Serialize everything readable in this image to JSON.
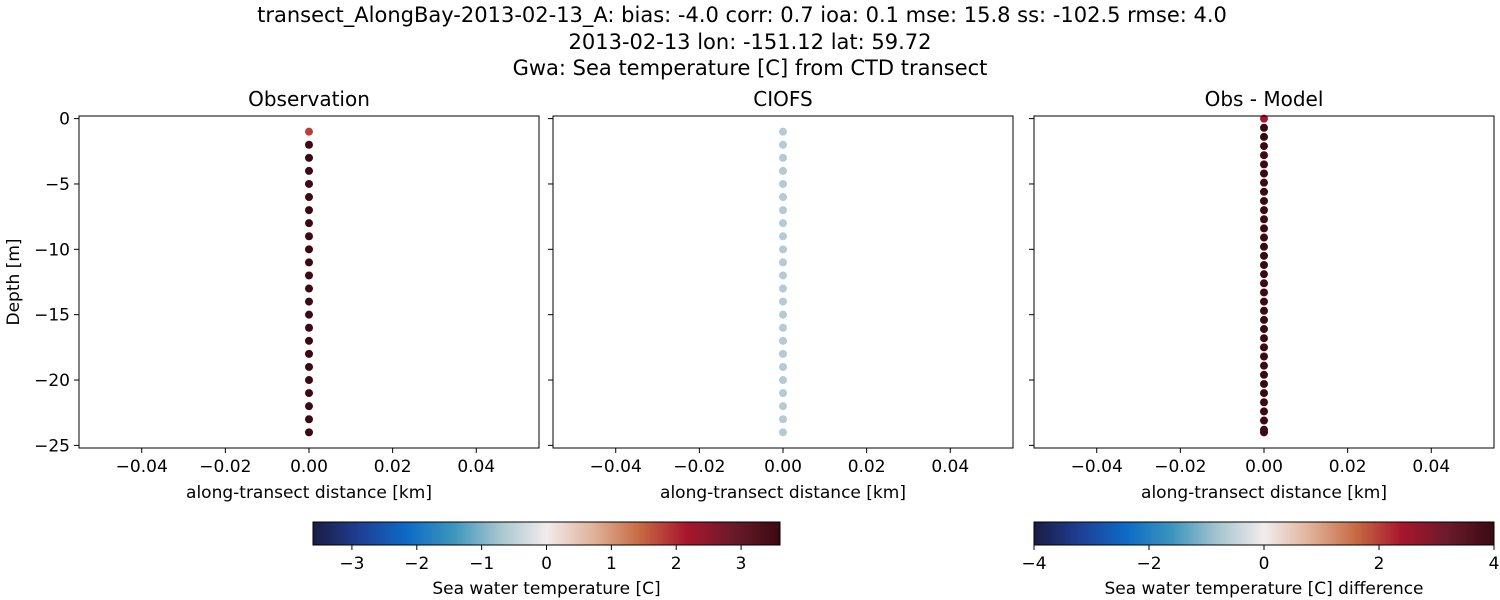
{
  "figure": {
    "title_lines": [
      "transect_AlongBay-2013-02-13_A: bias: -4.0  corr: 0.7  ioa: 0.1  mse: 15.8  ss: -102.5  rmse: 4.0",
      "2013-02-13 lon: -151.12 lat: 59.72",
      "Gwa: Sea temperature [C] from CTD transect"
    ]
  },
  "colormaps": {
    "balance_stops": [
      "#181c43",
      "#1f3f94",
      "#0e6ac7",
      "#3b95bd",
      "#a6c5d0",
      "#f1ecec",
      "#e0b29a",
      "#c76a43",
      "#a8162d",
      "#6a1a2a",
      "#3c0912"
    ]
  },
  "chart_data": [
    {
      "type": "scatter",
      "title": "Observation",
      "xlabel": "along-transect distance [km]",
      "ylabel": "Depth [m]",
      "xlim": [
        -0.055,
        0.055
      ],
      "ylim": [
        -25.2,
        0.2
      ],
      "xticks": [
        -0.04,
        -0.02,
        0.0,
        0.02,
        0.04
      ],
      "xtick_labels": [
        "−0.04",
        "−0.02",
        "0.00",
        "0.02",
        "0.04"
      ],
      "yticks": [
        0,
        -5,
        -10,
        -15,
        -20,
        -25
      ],
      "ytick_labels": [
        "0",
        "−5",
        "−10",
        "−15",
        "−20",
        "−25"
      ],
      "show_ytick_labels": true,
      "color_limits": [
        -3.6,
        3.6
      ],
      "x": [
        0,
        0,
        0,
        0,
        0,
        0,
        0,
        0,
        0,
        0,
        0,
        0,
        0,
        0,
        0,
        0,
        0,
        0,
        0,
        0,
        0,
        0,
        0,
        0
      ],
      "y": [
        -1,
        -2,
        -3,
        -4,
        -5,
        -6,
        -7,
        -8,
        -9,
        -10,
        -11,
        -12,
        -13,
        -14,
        -15,
        -16,
        -17,
        -18,
        -19,
        -20,
        -21,
        -22,
        -23,
        -24
      ],
      "values": [
        1.8,
        3.6,
        3.6,
        3.6,
        3.6,
        3.6,
        3.6,
        3.6,
        3.6,
        3.6,
        3.6,
        3.6,
        3.6,
        3.6,
        3.6,
        3.6,
        3.6,
        3.6,
        3.6,
        3.6,
        3.6,
        3.6,
        3.6,
        3.6
      ]
    },
    {
      "type": "scatter",
      "title": "CIOFS",
      "xlabel": "along-transect distance [km]",
      "ylabel": "",
      "xlim": [
        -0.055,
        0.055
      ],
      "ylim": [
        -25.2,
        0.2
      ],
      "xticks": [
        -0.04,
        -0.02,
        0.0,
        0.02,
        0.04
      ],
      "xtick_labels": [
        "−0.04",
        "−0.02",
        "0.00",
        "0.02",
        "0.04"
      ],
      "yticks": [
        0,
        -5,
        -10,
        -15,
        -20,
        -25
      ],
      "ytick_labels": [],
      "show_ytick_labels": false,
      "color_limits": [
        -3.6,
        3.6
      ],
      "x": [
        0,
        0,
        0,
        0,
        0,
        0,
        0,
        0,
        0,
        0,
        0,
        0,
        0,
        0,
        0,
        0,
        0,
        0,
        0,
        0,
        0,
        0,
        0,
        0
      ],
      "y": [
        -1,
        -2,
        -3,
        -4,
        -5,
        -6,
        -7,
        -8,
        -9,
        -10,
        -11,
        -12,
        -13,
        -14,
        -15,
        -16,
        -17,
        -18,
        -19,
        -20,
        -21,
        -22,
        -23,
        -24
      ],
      "values": [
        -0.6,
        -0.6,
        -0.6,
        -0.6,
        -0.6,
        -0.6,
        -0.6,
        -0.6,
        -0.6,
        -0.6,
        -0.6,
        -0.6,
        -0.6,
        -0.6,
        -0.6,
        -0.6,
        -0.6,
        -0.6,
        -0.6,
        -0.6,
        -0.6,
        -0.6,
        -0.6,
        -0.6
      ]
    },
    {
      "type": "scatter",
      "title": "Obs - Model",
      "xlabel": "along-transect distance [km]",
      "ylabel": "",
      "xlim": [
        -0.055,
        0.055
      ],
      "ylim": [
        -25.2,
        0.2
      ],
      "xticks": [
        -0.04,
        -0.02,
        0.0,
        0.02,
        0.04
      ],
      "xtick_labels": [
        "−0.04",
        "−0.02",
        "0.00",
        "0.02",
        "0.04"
      ],
      "yticks": [
        0,
        -5,
        -10,
        -15,
        -20,
        -25
      ],
      "ytick_labels": [],
      "show_ytick_labels": false,
      "color_limits": [
        -4,
        4
      ],
      "x": [
        0,
        0,
        0,
        0,
        0,
        0,
        0,
        0,
        0,
        0,
        0,
        0,
        0,
        0,
        0,
        0,
        0,
        0,
        0,
        0,
        0,
        0,
        0,
        0,
        0,
        0,
        0,
        0,
        0,
        0,
        0,
        0,
        0,
        0,
        0,
        0
      ],
      "y": [
        0,
        -0.7,
        -1.4,
        -2.1,
        -2.8,
        -3.5,
        -4.2,
        -4.9,
        -5.6,
        -6.3,
        -7.0,
        -7.7,
        -8.4,
        -9.1,
        -9.8,
        -10.5,
        -11.2,
        -11.9,
        -12.6,
        -13.3,
        -14.0,
        -14.7,
        -15.4,
        -16.1,
        -16.8,
        -17.5,
        -18.2,
        -18.9,
        -19.6,
        -20.3,
        -21.0,
        -21.7,
        -22.4,
        -23.1,
        -23.8,
        -24.0
      ],
      "values": [
        2.4,
        4,
        4,
        4,
        4,
        4,
        4,
        4,
        4,
        4,
        4,
        4,
        4,
        4,
        4,
        4,
        4,
        4,
        4,
        4,
        4,
        4,
        4,
        4,
        4,
        4,
        4,
        4,
        4,
        4,
        4,
        4,
        4,
        4,
        4,
        4
      ]
    }
  ],
  "colorbars": [
    {
      "label": "Sea water temperature [C]",
      "range": [
        -3.6,
        3.6
      ],
      "ticks": [
        -3,
        -2,
        -1,
        0,
        1,
        2,
        3
      ],
      "tick_labels": [
        "−3",
        "−2",
        "−1",
        "0",
        "1",
        "2",
        "3"
      ]
    },
    {
      "label": "Sea water temperature [C] difference",
      "range": [
        -4,
        4
      ],
      "ticks": [
        -4,
        -2,
        0,
        2,
        4
      ],
      "tick_labels": [
        "−4",
        "−2",
        "0",
        "2",
        "4"
      ]
    }
  ]
}
